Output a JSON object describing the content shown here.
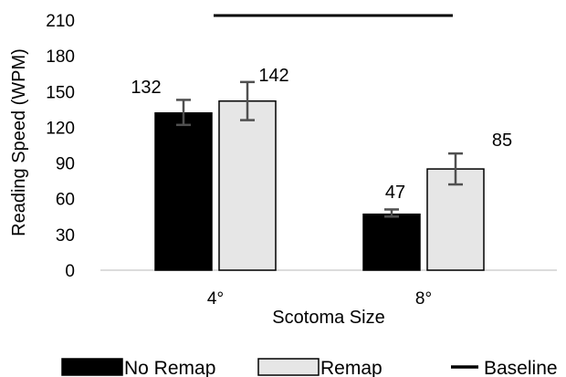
{
  "chart_data": {
    "type": "bar",
    "title": "",
    "xlabel": "Scotoma Size",
    "ylabel": "Reading Speed (WPM)",
    "categories": [
      "4°",
      "8°"
    ],
    "ylim": [
      0,
      210
    ],
    "yticks": [
      0,
      30,
      60,
      90,
      120,
      150,
      180,
      210
    ],
    "grid": false,
    "series": [
      {
        "name": "No Remap",
        "color": "#000000",
        "values": [
          132,
          47
        ],
        "error_low": [
          122,
          45
        ],
        "error_high": [
          143,
          51
        ],
        "labels": [
          "132",
          "47"
        ]
      },
      {
        "name": "Remap",
        "color": "#e6e6e6",
        "values": [
          142,
          85
        ],
        "error_low": [
          126,
          72
        ],
        "error_high": [
          158,
          98
        ],
        "labels": [
          "142",
          "85"
        ]
      }
    ],
    "reference_lines": [
      {
        "name": "Baseline",
        "value": 214,
        "color": "#000000"
      }
    ],
    "legend": {
      "placement": "bottom",
      "entries": [
        "No Remap",
        "Remap",
        "Baseline"
      ]
    }
  }
}
